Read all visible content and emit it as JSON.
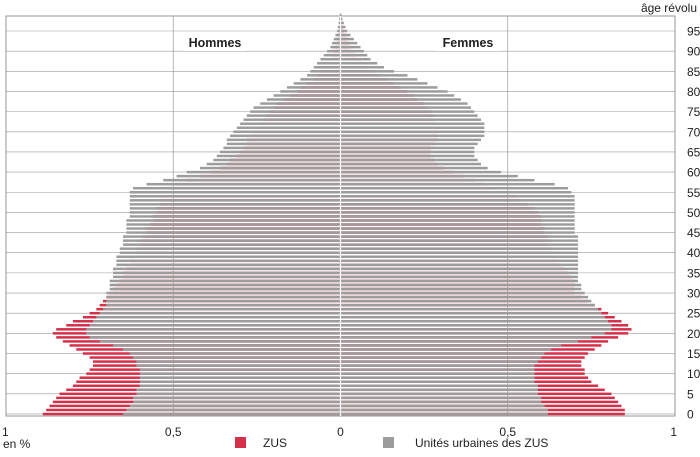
{
  "chart_data": {
    "type": "population-pyramid",
    "age_axis_title": "âge révolu",
    "x_unit": "en %",
    "left_label": "Hommes",
    "right_label": "Femmes",
    "age_ticks": [
      "0",
      "5",
      "10",
      "15",
      "20",
      "25",
      "30",
      "35",
      "40",
      "45",
      "50",
      "55",
      "60",
      "65",
      "70",
      "75",
      "80",
      "85",
      "90",
      "95"
    ],
    "x_ticks": [
      "1",
      "0,5",
      "0",
      "0,5",
      "1"
    ],
    "xlim": [
      -1,
      1
    ],
    "ages": [
      0,
      1,
      2,
      3,
      4,
      5,
      6,
      7,
      8,
      9,
      10,
      11,
      12,
      13,
      14,
      15,
      16,
      17,
      18,
      19,
      20,
      21,
      22,
      23,
      24,
      25,
      26,
      27,
      28,
      29,
      30,
      31,
      32,
      33,
      34,
      35,
      36,
      37,
      38,
      39,
      40,
      41,
      42,
      43,
      44,
      45,
      46,
      47,
      48,
      49,
      50,
      51,
      52,
      53,
      54,
      55,
      56,
      57,
      58,
      59,
      60,
      61,
      62,
      63,
      64,
      65,
      66,
      67,
      68,
      69,
      70,
      71,
      72,
      73,
      74,
      75,
      76,
      77,
      78,
      79,
      80,
      81,
      82,
      83,
      84,
      85,
      86,
      87,
      88,
      89,
      90,
      91,
      92,
      93,
      94,
      95,
      96,
      97,
      98,
      99
    ],
    "colors": {
      "zus": "#d5304a",
      "uu": "#9c9c9c"
    },
    "series": [
      {
        "name": "ZUS",
        "key": "zus",
        "men": [
          0.89,
          0.88,
          0.87,
          0.86,
          0.85,
          0.84,
          0.82,
          0.8,
          0.79,
          0.78,
          0.76,
          0.75,
          0.74,
          0.74,
          0.75,
          0.77,
          0.79,
          0.81,
          0.83,
          0.85,
          0.86,
          0.85,
          0.82,
          0.8,
          0.77,
          0.75,
          0.73,
          0.72,
          0.71,
          0.7,
          0.69,
          0.68,
          0.67,
          0.66,
          0.65,
          0.65,
          0.64,
          0.63,
          0.63,
          0.62,
          0.61,
          0.61,
          0.6,
          0.6,
          0.59,
          0.58,
          0.58,
          0.57,
          0.56,
          0.56,
          0.55,
          0.55,
          0.54,
          0.54,
          0.54,
          0.53,
          0.52,
          0.49,
          0.46,
          0.42,
          0.39,
          0.36,
          0.34,
          0.33,
          0.31,
          0.3,
          0.29,
          0.28,
          0.28,
          0.27,
          0.26,
          0.25,
          0.24,
          0.23,
          0.22,
          0.21,
          0.2,
          0.19,
          0.17,
          0.15,
          0.13,
          0.12,
          0.1,
          0.08,
          0.07,
          0.06,
          0.05,
          0.04,
          0.03,
          0.025,
          0.02,
          0.015,
          0.012,
          0.01,
          0.008,
          0.006,
          0.004,
          0.003,
          0.002,
          0.001
        ],
        "women": [
          0.85,
          0.85,
          0.84,
          0.83,
          0.82,
          0.81,
          0.79,
          0.77,
          0.75,
          0.74,
          0.73,
          0.73,
          0.72,
          0.72,
          0.73,
          0.74,
          0.76,
          0.78,
          0.8,
          0.83,
          0.86,
          0.87,
          0.86,
          0.84,
          0.82,
          0.8,
          0.78,
          0.76,
          0.74,
          0.72,
          0.7,
          0.7,
          0.7,
          0.7,
          0.69,
          0.68,
          0.67,
          0.66,
          0.65,
          0.65,
          0.64,
          0.63,
          0.62,
          0.62,
          0.62,
          0.61,
          0.61,
          0.6,
          0.6,
          0.6,
          0.59,
          0.58,
          0.56,
          0.54,
          0.52,
          0.49,
          0.46,
          0.43,
          0.4,
          0.37,
          0.34,
          0.31,
          0.29,
          0.28,
          0.27,
          0.27,
          0.27,
          0.28,
          0.29,
          0.29,
          0.29,
          0.29,
          0.29,
          0.28,
          0.28,
          0.27,
          0.26,
          0.25,
          0.23,
          0.22,
          0.2,
          0.18,
          0.16,
          0.14,
          0.12,
          0.1,
          0.08,
          0.07,
          0.06,
          0.05,
          0.04,
          0.03,
          0.025,
          0.02,
          0.015,
          0.01,
          0.008,
          0.006,
          0.004,
          0.002
        ]
      },
      {
        "name": "Unités urbaines des ZUS",
        "key": "uu",
        "men": [
          0.65,
          0.64,
          0.63,
          0.62,
          0.62,
          0.61,
          0.61,
          0.6,
          0.6,
          0.6,
          0.6,
          0.6,
          0.61,
          0.61,
          0.62,
          0.63,
          0.65,
          0.68,
          0.72,
          0.75,
          0.76,
          0.76,
          0.75,
          0.74,
          0.73,
          0.72,
          0.71,
          0.7,
          0.7,
          0.7,
          0.7,
          0.69,
          0.69,
          0.69,
          0.68,
          0.68,
          0.68,
          0.67,
          0.67,
          0.67,
          0.66,
          0.66,
          0.65,
          0.65,
          0.65,
          0.64,
          0.64,
          0.64,
          0.64,
          0.63,
          0.63,
          0.63,
          0.63,
          0.63,
          0.63,
          0.63,
          0.62,
          0.58,
          0.53,
          0.49,
          0.46,
          0.42,
          0.4,
          0.38,
          0.37,
          0.36,
          0.35,
          0.34,
          0.34,
          0.33,
          0.32,
          0.31,
          0.3,
          0.29,
          0.28,
          0.27,
          0.26,
          0.24,
          0.22,
          0.2,
          0.18,
          0.16,
          0.14,
          0.12,
          0.1,
          0.09,
          0.08,
          0.07,
          0.06,
          0.05,
          0.04,
          0.03,
          0.025,
          0.02,
          0.015,
          0.01,
          0.008,
          0.006,
          0.004,
          0.002
        ],
        "women": [
          0.62,
          0.62,
          0.61,
          0.6,
          0.6,
          0.59,
          0.59,
          0.59,
          0.58,
          0.58,
          0.58,
          0.58,
          0.58,
          0.59,
          0.6,
          0.61,
          0.63,
          0.66,
          0.71,
          0.75,
          0.79,
          0.81,
          0.81,
          0.8,
          0.79,
          0.78,
          0.77,
          0.76,
          0.75,
          0.74,
          0.73,
          0.72,
          0.72,
          0.71,
          0.71,
          0.71,
          0.71,
          0.71,
          0.71,
          0.71,
          0.71,
          0.71,
          0.71,
          0.71,
          0.71,
          0.7,
          0.7,
          0.7,
          0.7,
          0.7,
          0.7,
          0.7,
          0.7,
          0.7,
          0.7,
          0.69,
          0.68,
          0.64,
          0.58,
          0.53,
          0.48,
          0.44,
          0.42,
          0.41,
          0.4,
          0.4,
          0.4,
          0.41,
          0.42,
          0.43,
          0.43,
          0.43,
          0.43,
          0.42,
          0.41,
          0.4,
          0.39,
          0.38,
          0.36,
          0.34,
          0.32,
          0.29,
          0.26,
          0.23,
          0.2,
          0.16,
          0.13,
          0.11,
          0.09,
          0.08,
          0.07,
          0.06,
          0.05,
          0.04,
          0.03,
          0.02,
          0.015,
          0.01,
          0.006,
          0.003
        ]
      }
    ]
  }
}
